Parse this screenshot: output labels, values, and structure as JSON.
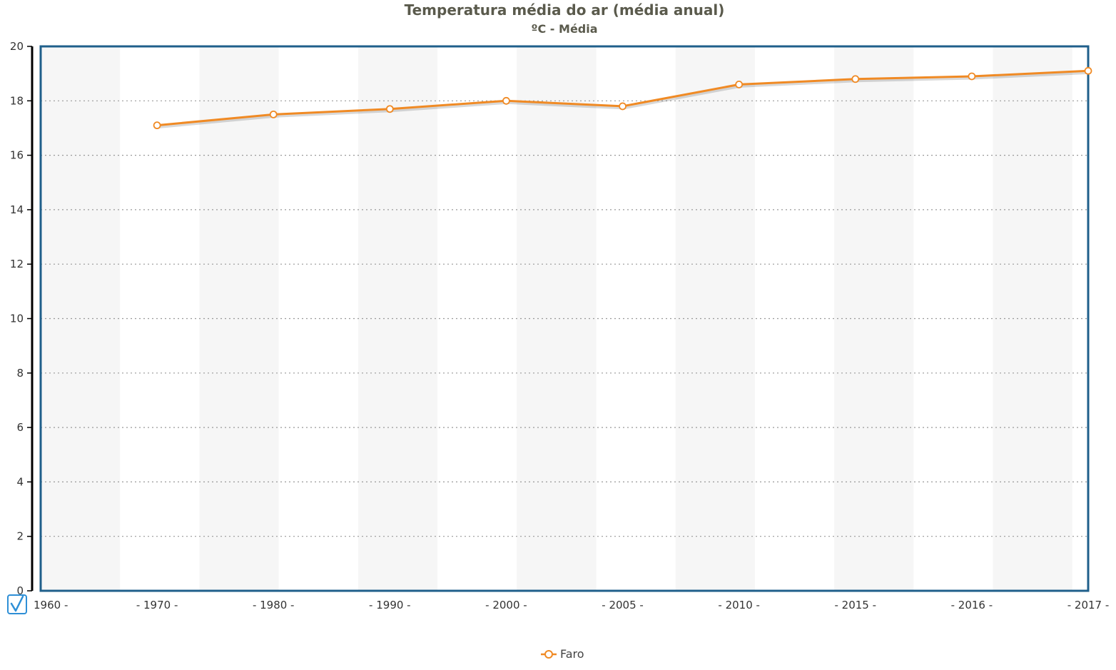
{
  "chart_data": {
    "type": "line",
    "title": "Temperatura média do ar (média anual)",
    "subtitle": "ºC - Média",
    "xlabel": "",
    "ylabel": "",
    "categories": [
      "1960",
      "1970",
      "1980",
      "1990",
      "2000",
      "2005",
      "2010",
      "2015",
      "2016",
      "2017"
    ],
    "x_tick_labels": [
      "1960 -",
      "- 1970 -",
      "- 1980 -",
      "- 1990 -",
      "- 2000 -",
      "- 2005 -",
      "- 2010 -",
      "- 2015 -",
      "- 2016 -",
      "- 2017 -"
    ],
    "series": [
      {
        "name": "Faro",
        "color": "#f08a24",
        "values": [
          null,
          17.1,
          17.5,
          17.7,
          18.0,
          17.8,
          18.6,
          18.8,
          18.9,
          19.1
        ]
      }
    ],
    "ylim": [
      0,
      20
    ],
    "y_ticks": [
      0,
      2,
      4,
      6,
      8,
      10,
      12,
      14,
      16,
      18,
      20
    ],
    "grid": true,
    "legend": "bottom-center"
  },
  "colors": {
    "plot_border": "#1f5f8b",
    "band": "#f6f6f6",
    "grid": "#999999",
    "checkbox": "#2e8fd6"
  },
  "icons": {
    "checkbox": "checkbox-checked-icon"
  }
}
